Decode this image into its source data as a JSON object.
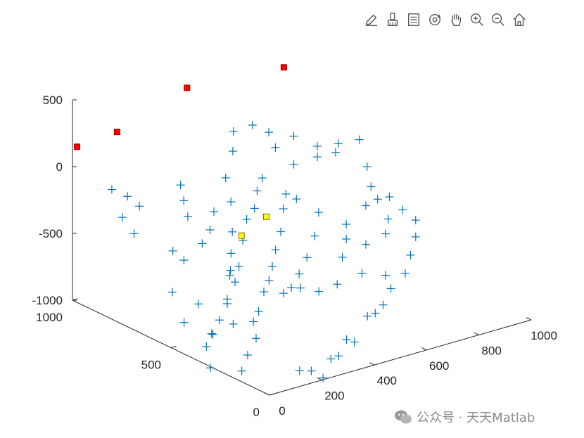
{
  "toolbar": {
    "items": [
      {
        "name": "edit-plot-icon"
      },
      {
        "name": "brush-icon"
      },
      {
        "name": "data-tips-icon"
      },
      {
        "name": "rotate-3d-icon"
      },
      {
        "name": "pan-icon"
      },
      {
        "name": "zoom-in-icon"
      },
      {
        "name": "zoom-out-icon"
      },
      {
        "name": "home-icon"
      }
    ]
  },
  "watermark": {
    "text": "公众号 · 天天Matlab",
    "icon": "wechat-icon"
  },
  "chart_data": {
    "type": "scatter3d",
    "xlim": [
      0,
      1000
    ],
    "ylim": [
      0,
      1000
    ],
    "zlim": [
      -1000,
      500
    ],
    "x_ticks": [
      0,
      200,
      400,
      600,
      800,
      1000
    ],
    "y_ticks": [
      0,
      500,
      1000
    ],
    "z_ticks": [
      -1000,
      -500,
      0,
      500
    ],
    "x_tick_labels": [
      "0",
      "200",
      "400",
      "600",
      "800",
      "1000"
    ],
    "y_tick_labels": [
      "0",
      "500",
      "1000"
    ],
    "z_tick_labels": [
      "-1000",
      "-500",
      "0",
      "500"
    ],
    "grid": false,
    "series": [
      {
        "marker": "plus",
        "color": "#0072BD",
        "points": [
          [
            60,
            880,
            -120
          ],
          [
            40,
            800,
            -260
          ],
          [
            100,
            820,
            -430
          ],
          [
            150,
            920,
            -250
          ],
          [
            30,
            700,
            -100
          ],
          [
            120,
            650,
            -450
          ],
          [
            200,
            700,
            -600
          ],
          [
            260,
            760,
            -350
          ],
          [
            300,
            850,
            -200
          ],
          [
            350,
            900,
            -380
          ],
          [
            80,
            600,
            -700
          ],
          [
            150,
            560,
            -800
          ],
          [
            50,
            500,
            -840
          ],
          [
            100,
            420,
            -900
          ],
          [
            200,
            450,
            -900
          ],
          [
            230,
            520,
            -780
          ],
          [
            300,
            600,
            -700
          ],
          [
            340,
            650,
            -720
          ],
          [
            380,
            700,
            -650
          ],
          [
            430,
            760,
            -560
          ],
          [
            470,
            820,
            -400
          ],
          [
            510,
            900,
            -300
          ],
          [
            560,
            930,
            -150
          ],
          [
            600,
            980,
            -60
          ],
          [
            650,
            950,
            -20
          ],
          [
            700,
            900,
            -180
          ],
          [
            740,
            860,
            -300
          ],
          [
            800,
            820,
            -250
          ],
          [
            850,
            780,
            -150
          ],
          [
            900,
            740,
            -120
          ],
          [
            450,
            600,
            -820
          ],
          [
            400,
            560,
            -850
          ],
          [
            350,
            520,
            -940
          ],
          [
            300,
            480,
            -960
          ],
          [
            250,
            400,
            -1000
          ],
          [
            180,
            350,
            -1050
          ],
          [
            120,
            300,
            -1100
          ],
          [
            500,
            650,
            -780
          ],
          [
            550,
            700,
            -720
          ],
          [
            600,
            740,
            -640
          ],
          [
            640,
            780,
            -520
          ],
          [
            680,
            820,
            -460
          ],
          [
            720,
            820,
            -520
          ],
          [
            760,
            760,
            -600
          ],
          [
            820,
            700,
            -680
          ],
          [
            880,
            680,
            -560
          ],
          [
            940,
            640,
            -500
          ],
          [
            960,
            600,
            -580
          ],
          [
            980,
            560,
            -640
          ],
          [
            950,
            520,
            -720
          ],
          [
            900,
            480,
            -800
          ],
          [
            850,
            440,
            -880
          ],
          [
            780,
            420,
            -940
          ],
          [
            720,
            380,
            -1000
          ],
          [
            660,
            340,
            -1000
          ],
          [
            600,
            300,
            -960
          ],
          [
            520,
            260,
            -1080
          ],
          [
            460,
            220,
            -1000
          ],
          [
            400,
            180,
            -1060
          ],
          [
            340,
            140,
            -1020
          ],
          [
            280,
            100,
            -1100
          ],
          [
            220,
            80,
            -1000
          ],
          [
            160,
            60,
            -950
          ],
          [
            300,
            740,
            -560
          ],
          [
            360,
            780,
            -520
          ],
          [
            420,
            840,
            -460
          ],
          [
            540,
            560,
            -900
          ],
          [
            580,
            520,
            -920
          ],
          [
            620,
            480,
            -860
          ],
          [
            700,
            560,
            -760
          ],
          [
            760,
            620,
            -700
          ],
          [
            820,
            600,
            -760
          ],
          [
            880,
            580,
            -700
          ],
          [
            920,
            620,
            -640
          ],
          [
            940,
            700,
            -560
          ],
          [
            960,
            760,
            -520
          ],
          [
            990,
            820,
            -430
          ],
          [
            900,
            860,
            -300
          ],
          [
            860,
            900,
            -260
          ],
          [
            800,
            940,
            -180
          ],
          [
            720,
            960,
            -120
          ],
          [
            650,
            900,
            -380
          ],
          [
            600,
            860,
            -420
          ],
          [
            560,
            820,
            -500
          ],
          [
            500,
            780,
            -520
          ],
          [
            440,
            720,
            -600
          ],
          [
            380,
            660,
            -720
          ],
          [
            320,
            600,
            -760
          ],
          [
            260,
            560,
            -860
          ],
          [
            200,
            520,
            -920
          ],
          [
            140,
            480,
            -960
          ],
          [
            90,
            440,
            -1000
          ],
          [
            60,
            380,
            -1100
          ],
          [
            700,
            700,
            -700
          ],
          [
            640,
            660,
            -800
          ],
          [
            580,
            620,
            -860
          ],
          [
            520,
            580,
            -900
          ],
          [
            460,
            540,
            -880
          ],
          [
            760,
            540,
            -900
          ],
          [
            820,
            500,
            -920
          ]
        ]
      },
      {
        "marker": "square",
        "color": "#FFFF00",
        "edge": "#8C6A00",
        "points": [
          [
            420,
            700,
            -540
          ],
          [
            560,
            760,
            -520
          ]
        ]
      },
      {
        "marker": "square",
        "color": "#FF0000",
        "edge": "#A00000",
        "points": [
          [
            10,
            990,
            150
          ],
          [
            80,
            880,
            300
          ],
          [
            400,
            950,
            400
          ],
          [
            800,
            990,
            300
          ]
        ]
      }
    ]
  }
}
